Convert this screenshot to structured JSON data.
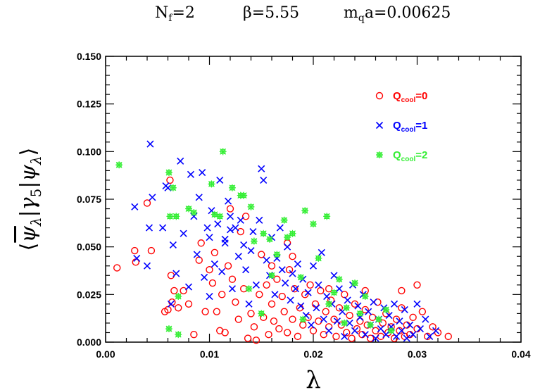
{
  "chart_data": {
    "type": "scatter",
    "title_parts": {
      "nf_main": "N",
      "nf_sub": "f",
      "nf_value": "=2",
      "beta": "β=5.55",
      "mq_main": "m",
      "mq_sub": "q",
      "mq_value": "a=0.00625"
    },
    "xlabel": "λ",
    "ylabel_tex": "⟨ ψ̄_λ | γ_5 | ψ_λ ⟩",
    "ylabel_parts": {
      "open": "⟨",
      "psi_bar": "ψ",
      "lambda1": "λ",
      "bar1": "|",
      "gamma": "γ",
      "five": "5",
      "bar2": "|",
      "psi": "ψ",
      "lambda2": "λ",
      "close": "⟩"
    },
    "xlim": [
      0.0,
      0.04
    ],
    "ylim": [
      0.0,
      0.15
    ],
    "x_ticks": [
      "0.00",
      "0.01",
      "0.02",
      "0.03",
      "0.04"
    ],
    "y_ticks": [
      "0.000",
      "0.025",
      "0.050",
      "0.075",
      "0.100",
      "0.125",
      "0.150"
    ],
    "legend_position": "top-right",
    "series": [
      {
        "legend_main": "Q",
        "legend_sub": "cool",
        "legend_value": "=0",
        "marker": "circle",
        "color": "#ff0000",
        "points": [
          [
            0.0011,
            0.039
          ],
          [
            0.0028,
            0.048
          ],
          [
            0.0029,
            0.042
          ],
          [
            0.004,
            0.073
          ],
          [
            0.0044,
            0.048
          ],
          [
            0.0057,
            0.016
          ],
          [
            0.006,
            0.017
          ],
          [
            0.0062,
            0.085
          ],
          [
            0.0063,
            0.035
          ],
          [
            0.0064,
            0.021
          ],
          [
            0.0066,
            0.027
          ],
          [
            0.007,
            0.018
          ],
          [
            0.0075,
            0.027
          ],
          [
            0.008,
            0.02
          ],
          [
            0.0085,
            0.004
          ],
          [
            0.009,
            0.043
          ],
          [
            0.0092,
            0.052
          ],
          [
            0.0096,
            0.016
          ],
          [
            0.01,
            0.038
          ],
          [
            0.0103,
            0.031
          ],
          [
            0.0105,
            0.047
          ],
          [
            0.0107,
            0.016
          ],
          [
            0.011,
            0.006
          ],
          [
            0.0112,
            0.025
          ],
          [
            0.0115,
            0.005
          ],
          [
            0.0118,
            0.04
          ],
          [
            0.012,
            0.07
          ],
          [
            0.0122,
            0.033
          ],
          [
            0.0125,
            0.021
          ],
          [
            0.0128,
            0.012
          ],
          [
            0.013,
            0.058
          ],
          [
            0.0133,
            0.028
          ],
          [
            0.0135,
            0.066
          ],
          [
            0.0137,
            0.002
          ],
          [
            0.014,
            0.015
          ],
          [
            0.0143,
            0.008
          ],
          [
            0.0145,
            0.001
          ],
          [
            0.0148,
            0.025
          ],
          [
            0.015,
            0.046
          ],
          [
            0.0152,
            0.013
          ],
          [
            0.0155,
            0.03
          ],
          [
            0.0157,
            0.004
          ],
          [
            0.016,
            0.02
          ],
          [
            0.0162,
            0.011
          ],
          [
            0.0165,
            0.033
          ],
          [
            0.0167,
            0.007
          ],
          [
            0.017,
            0.024
          ],
          [
            0.0172,
            0.016
          ],
          [
            0.0175,
            0.005
          ],
          [
            0.0177,
            0.038
          ],
          [
            0.018,
            0.012
          ],
          [
            0.0182,
            0.028
          ],
          [
            0.0185,
            0.003
          ],
          [
            0.0187,
            0.018
          ],
          [
            0.019,
            0.009
          ],
          [
            0.0192,
            0.025
          ],
          [
            0.0195,
            0.013
          ],
          [
            0.0197,
            0.03
          ],
          [
            0.02,
            0.006
          ],
          [
            0.0202,
            0.02
          ],
          [
            0.0205,
            0.011
          ],
          [
            0.0207,
            0.027
          ],
          [
            0.021,
            0.004
          ],
          [
            0.0212,
            0.016
          ],
          [
            0.0215,
            0.008
          ],
          [
            0.0217,
            0.022
          ],
          [
            0.022,
            0.012
          ],
          [
            0.0222,
            0.003
          ],
          [
            0.0225,
            0.018
          ],
          [
            0.0227,
            0.009
          ],
          [
            0.023,
            0.025
          ],
          [
            0.0232,
            0.005
          ],
          [
            0.0235,
            0.014
          ],
          [
            0.0237,
            0.002
          ],
          [
            0.024,
            0.02
          ],
          [
            0.0242,
            0.007
          ],
          [
            0.0245,
            0.011
          ],
          [
            0.0247,
            0.004
          ],
          [
            0.025,
            0.017
          ],
          [
            0.0252,
            0.009
          ],
          [
            0.0255,
            0.002
          ],
          [
            0.0257,
            0.013
          ],
          [
            0.026,
            0.006
          ],
          [
            0.0262,
            0.021
          ],
          [
            0.0265,
            0.003
          ],
          [
            0.0267,
            0.01
          ],
          [
            0.027,
            0.015
          ],
          [
            0.0272,
            0.005
          ],
          [
            0.0275,
            0.008
          ],
          [
            0.0278,
            0.002
          ],
          [
            0.028,
            0.012
          ],
          [
            0.0283,
            0.006
          ],
          [
            0.0285,
            0.018
          ],
          [
            0.0288,
            0.003
          ],
          [
            0.029,
            0.009
          ],
          [
            0.0293,
            0.004
          ],
          [
            0.0296,
            0.013
          ],
          [
            0.03,
            0.007
          ],
          [
            0.0305,
            0.016
          ],
          [
            0.031,
            0.003
          ],
          [
            0.0315,
            0.008
          ],
          [
            0.032,
            0.005
          ],
          [
            0.033,
            0.003
          ],
          [
            0.018,
            0.045
          ],
          [
            0.0175,
            0.052
          ],
          [
            0.016,
            0.04
          ],
          [
            0.0285,
            0.027
          ],
          [
            0.03,
            0.03
          ],
          [
            0.025,
            0.027
          ],
          [
            0.0215,
            0.028
          ]
        ]
      },
      {
        "legend_main": "Q",
        "legend_sub": "cool",
        "legend_value": "=1",
        "marker": "cross",
        "color": "#0000ff",
        "points": [
          [
            0.0028,
            0.071
          ],
          [
            0.003,
            0.044
          ],
          [
            0.004,
            0.04
          ],
          [
            0.0043,
            0.104
          ],
          [
            0.0045,
            0.076
          ],
          [
            0.0042,
            0.06
          ],
          [
            0.0055,
            0.06
          ],
          [
            0.0058,
            0.082
          ],
          [
            0.006,
            0.081
          ],
          [
            0.0063,
            0.02
          ],
          [
            0.0065,
            0.051
          ],
          [
            0.0068,
            0.036
          ],
          [
            0.0072,
            0.095
          ],
          [
            0.0075,
            0.057
          ],
          [
            0.008,
            0.029
          ],
          [
            0.0082,
            0.088
          ],
          [
            0.0085,
            0.066
          ],
          [
            0.0088,
            0.046
          ],
          [
            0.009,
            0.076
          ],
          [
            0.0093,
            0.089
          ],
          [
            0.0095,
            0.034
          ],
          [
            0.0098,
            0.06
          ],
          [
            0.01,
            0.055
          ],
          [
            0.0102,
            0.069
          ],
          [
            0.0105,
            0.041
          ],
          [
            0.0108,
            0.062
          ],
          [
            0.011,
            0.085
          ],
          [
            0.0112,
            0.037
          ],
          [
            0.0115,
            0.052
          ],
          [
            0.0118,
            0.074
          ],
          [
            0.012,
            0.066
          ],
          [
            0.0122,
            0.028
          ],
          [
            0.0125,
            0.06
          ],
          [
            0.0128,
            0.045
          ],
          [
            0.013,
            0.064
          ],
          [
            0.0133,
            0.051
          ],
          [
            0.0135,
            0.038
          ],
          [
            0.0138,
            0.02
          ],
          [
            0.014,
            0.048
          ],
          [
            0.0142,
            0.058
          ],
          [
            0.0145,
            0.03
          ],
          [
            0.0148,
            0.064
          ],
          [
            0.015,
            0.091
          ],
          [
            0.0152,
            0.085
          ],
          [
            0.0155,
            0.043
          ],
          [
            0.0158,
            0.035
          ],
          [
            0.016,
            0.055
          ],
          [
            0.0163,
            0.025
          ],
          [
            0.0165,
            0.044
          ],
          [
            0.0168,
            0.06
          ],
          [
            0.017,
            0.038
          ],
          [
            0.0173,
            0.031
          ],
          [
            0.0175,
            0.05
          ],
          [
            0.0178,
            0.022
          ],
          [
            0.018,
            0.036
          ],
          [
            0.0183,
            0.028
          ],
          [
            0.0185,
            0.041
          ],
          [
            0.0188,
            0.019
          ],
          [
            0.019,
            0.033
          ],
          [
            0.0193,
            0.014
          ],
          [
            0.0195,
            0.026
          ],
          [
            0.0198,
            0.009
          ],
          [
            0.02,
            0.04
          ],
          [
            0.0203,
            0.018
          ],
          [
            0.0205,
            0.03
          ],
          [
            0.0208,
            0.047
          ],
          [
            0.021,
            0.012
          ],
          [
            0.0213,
            0.024
          ],
          [
            0.0215,
            0.006
          ],
          [
            0.0218,
            0.02
          ],
          [
            0.022,
            0.035
          ],
          [
            0.0223,
            0.011
          ],
          [
            0.0225,
            0.028
          ],
          [
            0.0228,
            0.016
          ],
          [
            0.023,
            0.003
          ],
          [
            0.0233,
            0.022
          ],
          [
            0.0235,
            0.01
          ],
          [
            0.0238,
            0.03
          ],
          [
            0.024,
            0.006
          ],
          [
            0.0243,
            0.019
          ],
          [
            0.0245,
            0.013
          ],
          [
            0.0248,
            0.025
          ],
          [
            0.025,
            0.004
          ],
          [
            0.0253,
            0.016
          ],
          [
            0.0255,
            0.009
          ],
          [
            0.0258,
            0.021
          ],
          [
            0.026,
            0.002
          ],
          [
            0.0263,
            0.012
          ],
          [
            0.0265,
            0.007
          ],
          [
            0.0268,
            0.018
          ],
          [
            0.027,
            0.004
          ],
          [
            0.0273,
            0.014
          ],
          [
            0.0275,
            0.008
          ],
          [
            0.0278,
            0.02
          ],
          [
            0.028,
            0.003
          ],
          [
            0.0283,
            0.011
          ],
          [
            0.0285,
            0.006
          ],
          [
            0.0288,
            0.017
          ],
          [
            0.029,
            0.002
          ],
          [
            0.0293,
            0.009
          ],
          [
            0.0296,
            0.004
          ],
          [
            0.03,
            0.02
          ],
          [
            0.0303,
            0.007
          ],
          [
            0.0308,
            0.012
          ],
          [
            0.0312,
            0.003
          ],
          [
            0.0318,
            0.006
          ],
          [
            0.012,
            0.059
          ],
          [
            0.0115,
            0.054
          ],
          [
            0.01,
            0.024
          ]
        ]
      },
      {
        "legend_main": "Q",
        "legend_sub": "cool",
        "legend_value": "=2",
        "marker": "star",
        "color": "#33ee33",
        "points": [
          [
            0.0013,
            0.093
          ],
          [
            0.0061,
            0.089
          ],
          [
            0.0065,
            0.081
          ],
          [
            0.0062,
            0.066
          ],
          [
            0.0068,
            0.066
          ],
          [
            0.007,
            0.024
          ],
          [
            0.0061,
            0.007
          ],
          [
            0.008,
            0.07
          ],
          [
            0.0085,
            0.068
          ],
          [
            0.0102,
            0.083
          ],
          [
            0.0105,
            0.067
          ],
          [
            0.011,
            0.066
          ],
          [
            0.0113,
            0.1
          ],
          [
            0.0122,
            0.081
          ],
          [
            0.013,
            0.077
          ],
          [
            0.0133,
            0.077
          ],
          [
            0.014,
            0.071
          ],
          [
            0.0143,
            0.053
          ],
          [
            0.0138,
            0.028
          ],
          [
            0.0152,
            0.057
          ],
          [
            0.0158,
            0.054
          ],
          [
            0.016,
            0.035
          ],
          [
            0.0165,
            0.046
          ],
          [
            0.0172,
            0.064
          ],
          [
            0.0175,
            0.055
          ],
          [
            0.018,
            0.057
          ],
          [
            0.0188,
            0.034
          ],
          [
            0.0192,
            0.069
          ],
          [
            0.02,
            0.062
          ],
          [
            0.0205,
            0.044
          ],
          [
            0.0213,
            0.066
          ],
          [
            0.022,
            0.026
          ],
          [
            0.0225,
            0.033
          ],
          [
            0.0232,
            0.018
          ],
          [
            0.024,
            0.031
          ],
          [
            0.0245,
            0.015
          ],
          [
            0.025,
            0.024
          ],
          [
            0.0255,
            0.009
          ],
          [
            0.0263,
            0.012
          ],
          [
            0.027,
            0.017
          ],
          [
            0.0275,
            0.006
          ],
          [
            0.019,
            0.012
          ],
          [
            0.0215,
            0.02
          ],
          [
            0.023,
            0.01
          ],
          [
            0.015,
            0.015
          ],
          [
            0.007,
            0.004
          ]
        ]
      }
    ]
  }
}
